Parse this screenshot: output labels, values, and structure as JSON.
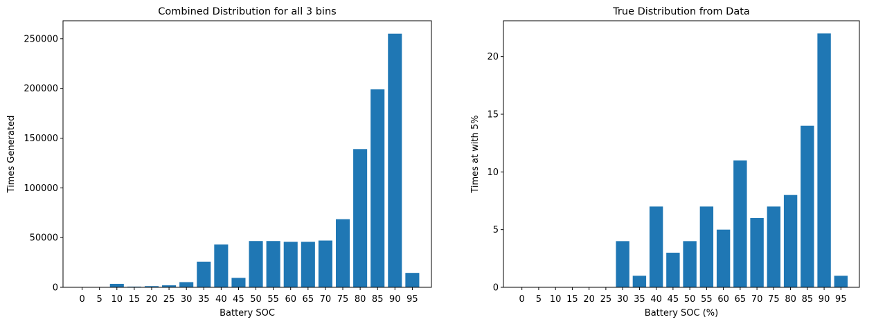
{
  "chart_data": [
    {
      "type": "bar",
      "title": "Combined Distribution for all 3 bins",
      "xlabel": "Battery SOC",
      "ylabel": "Times Generated",
      "categories": [
        "0",
        "5",
        "10",
        "15",
        "20",
        "25",
        "30",
        "35",
        "40",
        "45",
        "50",
        "55",
        "60",
        "65",
        "70",
        "75",
        "80",
        "85",
        "90",
        "95"
      ],
      "values": [
        0,
        0,
        3500,
        700,
        1200,
        2000,
        5200,
        25800,
        43000,
        9500,
        46500,
        46500,
        45800,
        45800,
        47000,
        68500,
        139000,
        199000,
        255000,
        14500
      ],
      "yticks": [
        0,
        50000,
        100000,
        150000,
        200000,
        250000
      ],
      "ylim": [
        0,
        268000
      ],
      "color": "#1f77b4",
      "grid": false
    },
    {
      "type": "bar",
      "title": "True Distribution from Data",
      "xlabel": "Battery SOC (%)",
      "ylabel": "Times at with 5%",
      "categories": [
        "0",
        "5",
        "10",
        "15",
        "20",
        "25",
        "30",
        "35",
        "40",
        "45",
        "50",
        "55",
        "60",
        "65",
        "70",
        "75",
        "80",
        "85",
        "90",
        "95"
      ],
      "values": [
        0,
        0,
        0,
        0,
        0,
        0,
        4,
        1,
        7,
        3,
        4,
        7,
        5,
        11,
        6,
        7,
        8,
        14,
        22,
        1
      ],
      "yticks": [
        0,
        5,
        10,
        15,
        20
      ],
      "ylim": [
        0,
        23.1
      ],
      "color": "#1f77b4",
      "grid": false
    }
  ]
}
